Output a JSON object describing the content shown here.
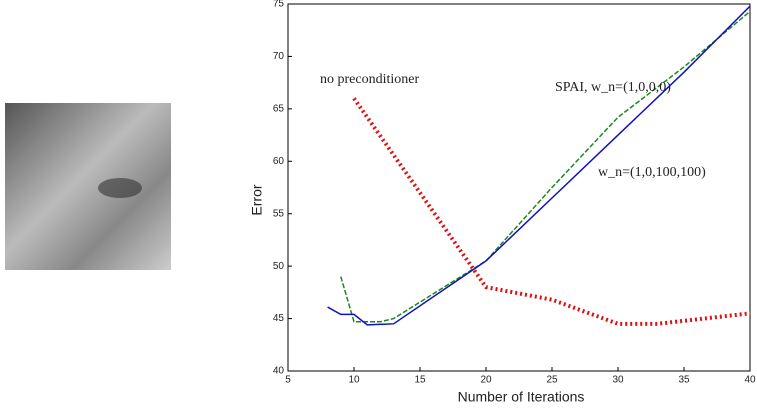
{
  "chart_data": {
    "type": "line",
    "xlabel": "Number of Iterations",
    "ylabel": "Error",
    "xlim": [
      5,
      40
    ],
    "xticks": [
      5,
      10,
      15,
      20,
      25,
      30,
      35,
      40
    ],
    "ylim": [
      40,
      75
    ],
    "yticks": [
      40,
      45,
      50,
      55,
      60,
      65,
      70,
      75
    ],
    "series": [
      {
        "name": "no preconditioner",
        "color": "#e01010",
        "style": "dotted",
        "width": 4,
        "x": [
          10,
          20,
          25,
          30,
          33,
          40
        ],
        "values": [
          66,
          48,
          46.8,
          44.5,
          44.5,
          45.5
        ]
      },
      {
        "name": "SPAI, w_n=(1,0,0,0)",
        "color": "#1a8a1a",
        "style": "dashed",
        "width": 1.5,
        "x": [
          9,
          10,
          12,
          13,
          20,
          25,
          30,
          35,
          40
        ],
        "values": [
          49,
          44.7,
          44.7,
          45,
          50.5,
          57.5,
          64.2,
          69,
          74.3
        ]
      },
      {
        "name": "w_n=(1,0,100,100)",
        "color": "#1010c0",
        "style": "solid",
        "width": 1.5,
        "x": [
          8,
          9,
          10,
          11,
          13,
          20,
          25,
          30,
          35,
          40
        ],
        "values": [
          46.1,
          45.4,
          45.4,
          44.4,
          44.5,
          50.5,
          56.5,
          62.5,
          68.5,
          74.8
        ]
      }
    ]
  }
}
